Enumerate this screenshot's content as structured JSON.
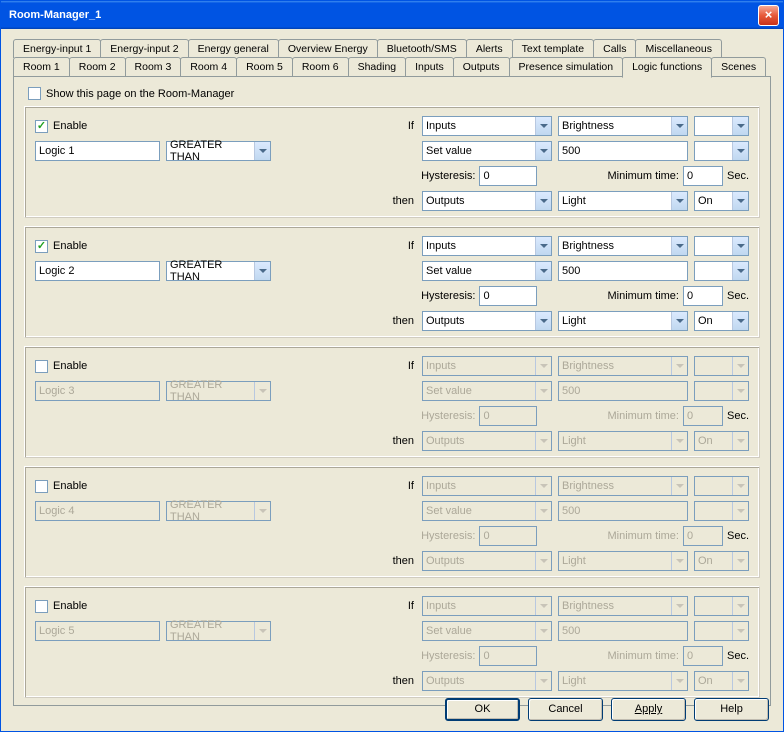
{
  "window": {
    "title": "Room-Manager_1"
  },
  "tabs_row1": [
    "Energy-input 1",
    "Energy-input 2",
    "Energy general",
    "Overview Energy",
    "Bluetooth/SMS",
    "Alerts",
    "Text template",
    "Calls",
    "Miscellaneous"
  ],
  "tabs_row2": [
    "Room 1",
    "Room 2",
    "Room 3",
    "Room 4",
    "Room 5",
    "Room 6",
    "Shading",
    "Inputs",
    "Outputs",
    "Presence simulation",
    "Logic functions",
    "Scenes"
  ],
  "active_tab": "Logic functions",
  "show_page_label": "Show this page on the Room-Manager",
  "labels": {
    "enable": "Enable",
    "if": "If",
    "then": "then",
    "hysteresis": "Hysteresis:",
    "mintime": "Minimum time:",
    "sec": "Sec."
  },
  "logic": [
    {
      "enabled": true,
      "name": "Logic 1",
      "cmp": "GREATER THAN",
      "src": "Inputs",
      "srcprop": "Brightness",
      "mode": "Set value",
      "val": "500",
      "hyst": "0",
      "mint": "0",
      "dst": "Outputs",
      "dstprop": "Light",
      "act": "On"
    },
    {
      "enabled": true,
      "name": "Logic 2",
      "cmp": "GREATER THAN",
      "src": "Inputs",
      "srcprop": "Brightness",
      "mode": "Set value",
      "val": "500",
      "hyst": "0",
      "mint": "0",
      "dst": "Outputs",
      "dstprop": "Light",
      "act": "On"
    },
    {
      "enabled": false,
      "name": "Logic 3",
      "cmp": "GREATER THAN",
      "src": "Inputs",
      "srcprop": "Brightness",
      "mode": "Set value",
      "val": "500",
      "hyst": "0",
      "mint": "0",
      "dst": "Outputs",
      "dstprop": "Light",
      "act": "On"
    },
    {
      "enabled": false,
      "name": "Logic 4",
      "cmp": "GREATER THAN",
      "src": "Inputs",
      "srcprop": "Brightness",
      "mode": "Set value",
      "val": "500",
      "hyst": "0",
      "mint": "0",
      "dst": "Outputs",
      "dstprop": "Light",
      "act": "On"
    },
    {
      "enabled": false,
      "name": "Logic 5",
      "cmp": "GREATER THAN",
      "src": "Inputs",
      "srcprop": "Brightness",
      "mode": "Set value",
      "val": "500",
      "hyst": "0",
      "mint": "0",
      "dst": "Outputs",
      "dstprop": "Light",
      "act": "On"
    }
  ],
  "buttons": {
    "ok": "OK",
    "cancel": "Cancel",
    "apply": "Apply",
    "help": "Help"
  },
  "colors": {
    "titlebar": "#0054e3",
    "panel": "#ece9d8",
    "border": "#919b9c"
  }
}
